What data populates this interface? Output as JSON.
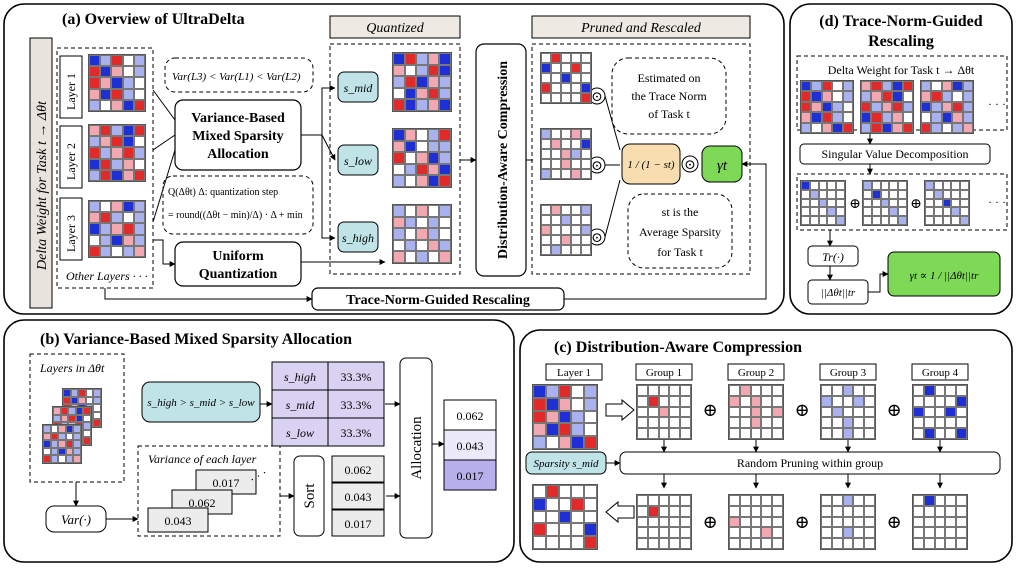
{
  "panel_a": {
    "title": "(a) Overview of UltraDelta",
    "delta_weight_label": "Delta Weight for Task t → Δθt",
    "layers": [
      "Layer 1",
      "Layer 2",
      "Layer 3"
    ],
    "other_layers": "Other Layers · · ·",
    "variance_inequality": "Var(L3) < Var(L1) < Var(L2)",
    "vbmsa_box": [
      "Variance-Based",
      "Mixed Sparsity",
      "Allocation"
    ],
    "quant_formula_line1": "Q(Δθt)   Δ: quantization step",
    "quant_formula_line2": "= round((Δθt − min)/Δ) · Δ + min",
    "uq_box": [
      "Uniform",
      "Quantization"
    ],
    "quantized_header": "Quantized",
    "pruned_header": "Pruned and Rescaled",
    "s_mid": "s_mid",
    "s_low": "s_low",
    "s_high": "s_high",
    "dac_box": "Distribution-Aware Compression",
    "estimated_bubble": [
      "Estimated on",
      "the Trace Norm",
      "of Task t"
    ],
    "sparsity_bubble": [
      "st is the",
      "Average Sparsity",
      "for Task t"
    ],
    "fraction": "1 / (1 − st)",
    "gamma": "γt",
    "odot": "⊙",
    "tngr_bar": "Trace-Norm-Guided Rescaling"
  },
  "panel_b": {
    "title": "(b) Variance-Based Mixed Sparsity Allocation",
    "layers_in": "Layers in Δθt",
    "var_op": "Var(·)",
    "order_box": "s_high > s_mid > s_low",
    "table_rows": [
      {
        "label": "s_high",
        "value": "33.3%"
      },
      {
        "label": "s_mid",
        "value": "33.3%"
      },
      {
        "label": "s_low",
        "value": "33.3%"
      }
    ],
    "variance_caption": "Variance of each layer",
    "stack_values": [
      "0.017",
      "0.062",
      "0.043"
    ],
    "sort_label": "Sort",
    "sorted_values": [
      "0.062",
      "0.043",
      "0.017"
    ],
    "allocation_label": "Allocation",
    "result_values": [
      "0.062",
      "0.043",
      "0.017"
    ]
  },
  "panel_c": {
    "title": "(c) Distribution-Aware Compression",
    "layer_label": "Layer 1",
    "groups": [
      "Group 1",
      "Group 2",
      "Group 3",
      "Group 4"
    ],
    "sparsity_label": "Sparsity s_mid",
    "random_pruning": "Random Pruning within group",
    "oplus": "⊕"
  },
  "panel_d": {
    "title": [
      "(d) Trace-Norm-Guided",
      "Rescaling"
    ],
    "delta_caption": "Delta Weight for Task t → Δθt",
    "svd_label": "Singular Value Decomposition",
    "trace_label": "Tr(·)",
    "norm_label": "||Δθt||tr",
    "gamma_formula": "γt ∝ 1 / ||Δθt||tr",
    "ellipsis": "· · ·"
  },
  "colors": {
    "blue_dark": "#1f2fd6",
    "blue_light": "#a9b2ee",
    "red_dark": "#e22a2a",
    "red_light": "#f3a7b0",
    "s_box_fill": "#bfe3e6",
    "fraction_fill": "#f7ddb0",
    "gamma_fill": "#7ed957",
    "table_fill": "#d9d2f2",
    "result_fill": "#b8b0ea"
  }
}
